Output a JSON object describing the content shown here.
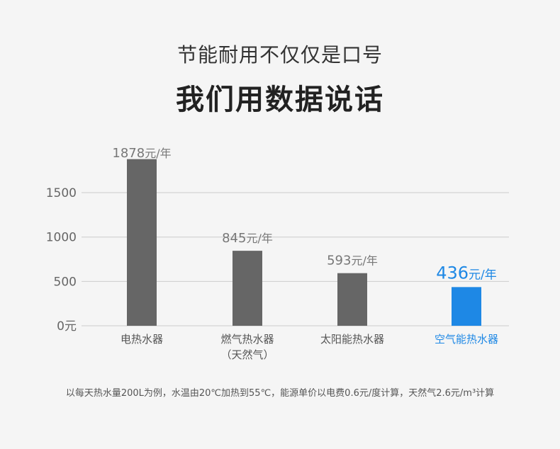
{
  "heading": {
    "line1": "节能耐用不仅仅是口号",
    "line2": "我们用数据说话"
  },
  "colors": {
    "bar_default": "#666666",
    "bar_highlight": "#1e88e5",
    "label_default": "#777777",
    "category_default": "#555555",
    "grid": "#cccccc"
  },
  "chart_data": {
    "type": "bar",
    "title": "",
    "xlabel": "",
    "ylabel": "",
    "ylim": [
      0,
      1900
    ],
    "yticks": [
      0,
      500,
      1000,
      1500
    ],
    "ytick_labels": [
      "0元",
      "500",
      "1000",
      "1500"
    ],
    "grid": "horizontal",
    "categories": [
      "电热水器",
      "燃气热水器",
      "太阳能热水器",
      "空气能热水器"
    ],
    "category_sublabels": [
      "",
      "（天然气）",
      "",
      ""
    ],
    "values": [
      1878,
      845,
      593,
      436
    ],
    "value_labels": [
      {
        "number": "1878",
        "unit": "元/年"
      },
      {
        "number": "845",
        "unit": "元/年"
      },
      {
        "number": "593",
        "unit": "元/年"
      },
      {
        "number": "436",
        "unit": "元/年"
      }
    ],
    "highlight_index": 3
  },
  "footnote": "以每天热水量200L为例，水温由20℃加热到55℃，能源单价以电费0.6元/度计算，天然气2.6元/m³计算"
}
